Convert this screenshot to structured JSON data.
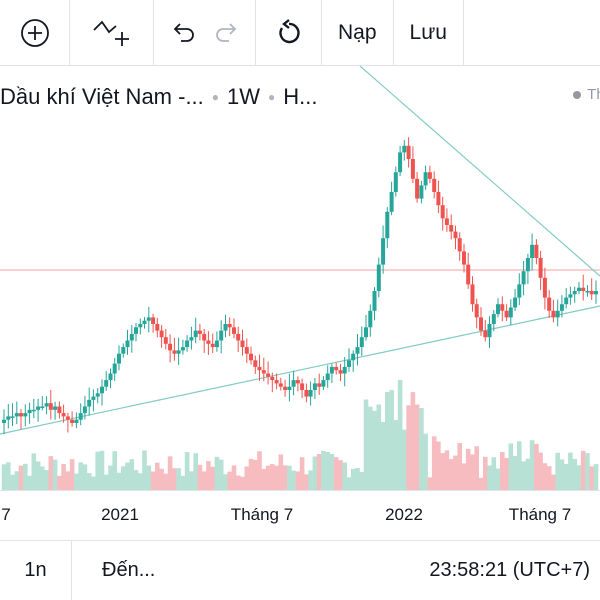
{
  "toolbar": {
    "icons": [
      "plus-circle-icon",
      "indicators-icon",
      "undo-icon",
      "redo-icon",
      "reload-icon"
    ],
    "load_label": "Nạp",
    "save_label": "Lưu"
  },
  "legend": {
    "symbol": "Dầu khí Việt Nam -...",
    "interval": "1W",
    "exchange": "H...",
    "market_status": "Thị"
  },
  "colors": {
    "up": "#26a69a",
    "down": "#ef5350",
    "trendline": "#80cbc4",
    "price_line": "#f4a3a3"
  },
  "x_axis": {
    "ticks": [
      "7",
      "2021",
      "Tháng 7",
      "2022",
      "Tháng 7"
    ]
  },
  "chart_data": {
    "type": "candlestick",
    "x": "weekly",
    "x_ticks": [
      "7",
      "2021",
      "Tháng 7",
      "2022",
      "Tháng 7"
    ],
    "trend": [
      0.61,
      0.62,
      0.62,
      0.63,
      0.62,
      0.63,
      0.64,
      0.64,
      0.65,
      0.65,
      0.66,
      0.64,
      0.65,
      0.63,
      0.62,
      0.61,
      0.6,
      0.61,
      0.63,
      0.65,
      0.67,
      0.68,
      0.69,
      0.71,
      0.73,
      0.75,
      0.78,
      0.81,
      0.83,
      0.85,
      0.87,
      0.89,
      0.9,
      0.91,
      0.92,
      0.9,
      0.88,
      0.86,
      0.84,
      0.82,
      0.81,
      0.82,
      0.83,
      0.85,
      0.86,
      0.88,
      0.87,
      0.85,
      0.84,
      0.83,
      0.85,
      0.88,
      0.9,
      0.89,
      0.87,
      0.85,
      0.83,
      0.81,
      0.79,
      0.77,
      0.76,
      0.75,
      0.74,
      0.73,
      0.72,
      0.71,
      0.7,
      0.71,
      0.73,
      0.72,
      0.7,
      0.68,
      0.7,
      0.72,
      0.71,
      0.73,
      0.75,
      0.77,
      0.76,
      0.75,
      0.77,
      0.79,
      0.81,
      0.83,
      0.86,
      0.89,
      0.94,
      1.0,
      1.08,
      1.16,
      1.24,
      1.3,
      1.36,
      1.42,
      1.44,
      1.4,
      1.34,
      1.28,
      1.32,
      1.36,
      1.34,
      1.3,
      1.26,
      1.22,
      1.2,
      1.18,
      1.16,
      1.12,
      1.08,
      1.02,
      0.96,
      0.92,
      0.88,
      0.86,
      0.9,
      0.93,
      0.96,
      0.94,
      0.92,
      0.95,
      0.98,
      1.02,
      1.06,
      1.1,
      1.14,
      1.1,
      1.04,
      0.98,
      0.94,
      0.92,
      0.94,
      0.96,
      0.98,
      0.99,
      1.0,
      1.01,
      1.0,
      1.0,
      0.99,
      1.0
    ]
  }
}
